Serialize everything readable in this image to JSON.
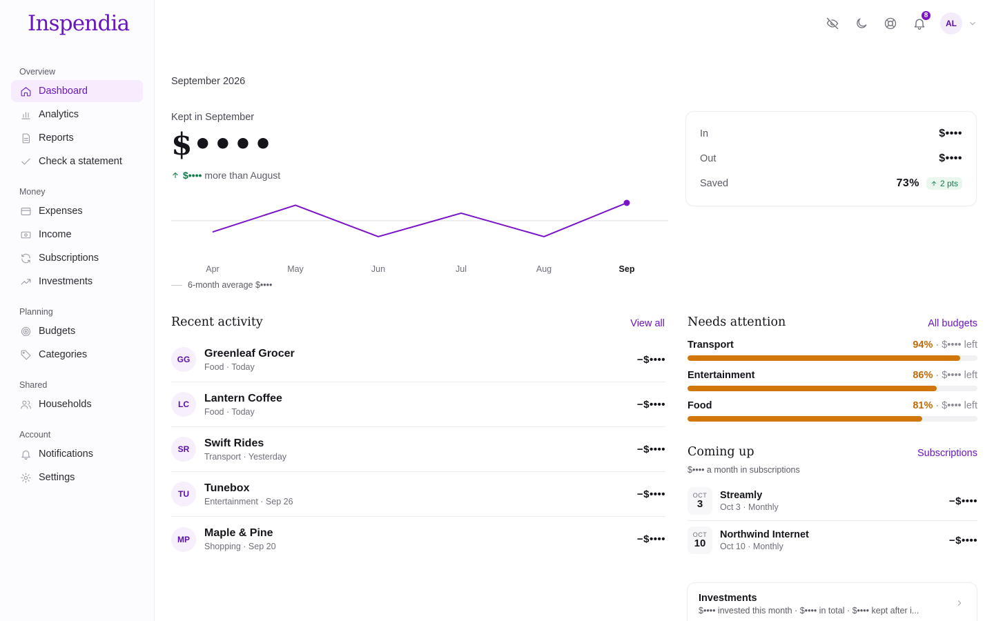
{
  "app": {
    "brand": "Inspendia"
  },
  "sidebar": {
    "sections": [
      {
        "heading": "Overview",
        "items": [
          {
            "label": "Dashboard",
            "icon": "home-icon",
            "active": true
          },
          {
            "label": "Analytics",
            "icon": "bar-chart-icon"
          },
          {
            "label": "Reports",
            "icon": "document-icon"
          },
          {
            "label": "Check a statement",
            "icon": "check-icon"
          }
        ]
      },
      {
        "heading": "Money",
        "items": [
          {
            "label": "Expenses",
            "icon": "credit-card-icon"
          },
          {
            "label": "Income",
            "icon": "banknote-icon"
          },
          {
            "label": "Subscriptions",
            "icon": "refresh-icon"
          },
          {
            "label": "Investments",
            "icon": "trending-up-icon"
          }
        ]
      },
      {
        "heading": "Planning",
        "items": [
          {
            "label": "Budgets",
            "icon": "target-icon"
          },
          {
            "label": "Categories",
            "icon": "tag-icon"
          }
        ]
      },
      {
        "heading": "Shared",
        "items": [
          {
            "label": "Households",
            "icon": "users-icon"
          }
        ]
      },
      {
        "heading": "Account",
        "items": [
          {
            "label": "Notifications",
            "icon": "bell-icon"
          },
          {
            "label": "Settings",
            "icon": "gear-icon"
          }
        ]
      }
    ]
  },
  "topbar": {
    "notification_count": "8",
    "avatar_initials": "AL",
    "icons": [
      "eye-off-icon",
      "moon-icon",
      "help-ring-icon",
      "bell-icon",
      "chevron-down-icon"
    ]
  },
  "header": {
    "period": "September 2026",
    "kept_label": "Kept in September",
    "kept_value": "$••••",
    "delta_amount": "$••••",
    "delta_text": "more than August",
    "avg_text": "6-month average $••••"
  },
  "chart_data": {
    "type": "line",
    "categories": [
      "Apr",
      "May",
      "Jun",
      "Jul",
      "Aug",
      "Sep"
    ],
    "series": [
      {
        "values": [
          0.38,
          0.95,
          0.28,
          0.78,
          0.28,
          1.0
        ]
      }
    ],
    "reference_line": 0.62,
    "highlight": "Sep",
    "color": "#7a12c8"
  },
  "summary": {
    "in_label": "In",
    "in_value": "$••••",
    "out_label": "Out",
    "out_value": "$••••",
    "saved_label": "Saved",
    "saved_value": "73%",
    "saved_delta": "2 pts"
  },
  "activity": {
    "title": "Recent activity",
    "link": "View all",
    "rows": [
      {
        "initials": "GG",
        "name": "Greenleaf Grocer",
        "meta": "Food · Today",
        "amount": "−$••••"
      },
      {
        "initials": "LC",
        "name": "Lantern Coffee",
        "meta": "Food · Today",
        "amount": "−$••••"
      },
      {
        "initials": "SR",
        "name": "Swift Rides",
        "meta": "Transport · Yesterday",
        "amount": "−$••••"
      },
      {
        "initials": "TU",
        "name": "Tunebox",
        "meta": "Entertainment · Sep 26",
        "amount": "−$••••"
      },
      {
        "initials": "MP",
        "name": "Maple & Pine",
        "meta": "Shopping · Sep 20",
        "amount": "−$••••"
      }
    ]
  },
  "attention": {
    "title": "Needs attention",
    "link": "All budgets",
    "budgets": [
      {
        "name": "Transport",
        "pct_label": "94%",
        "pct": 0.94,
        "left": "· $•••• left"
      },
      {
        "name": "Entertainment",
        "pct_label": "86%",
        "pct": 0.86,
        "left": "· $•••• left"
      },
      {
        "name": "Food",
        "pct_label": "81%",
        "pct": 0.81,
        "left": "· $•••• left"
      }
    ]
  },
  "coming": {
    "title": "Coming up",
    "link": "Subscriptions",
    "subtitle": "$•••• a month in subscriptions",
    "items": [
      {
        "month": "OCT",
        "day": "3",
        "name": "Streamly",
        "meta": "Oct 3 · Monthly",
        "amount": "−$••••"
      },
      {
        "month": "OCT",
        "day": "10",
        "name": "Northwind Internet",
        "meta": "Oct 10 · Monthly",
        "amount": "−$••••"
      }
    ]
  },
  "investments": {
    "title": "Investments",
    "subtitle": "$•••• invested this month · $•••• in total · $•••• kept after i..."
  },
  "colors": {
    "accent": "#6a16c2",
    "warning": "#d17608",
    "positive": "#0d7a48"
  }
}
